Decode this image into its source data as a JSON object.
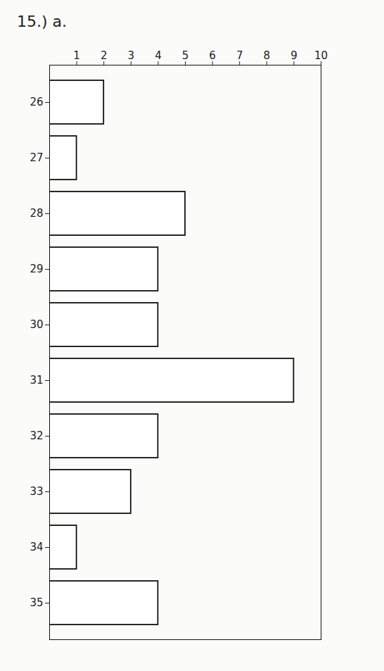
{
  "chart_data": {
    "type": "bar",
    "title": "15.) a.",
    "orientation": "horizontal",
    "categories": [
      "26",
      "27",
      "28",
      "29",
      "30",
      "31",
      "32",
      "33",
      "34",
      "35"
    ],
    "values": [
      2,
      1,
      5,
      4,
      4,
      9,
      4,
      3,
      1,
      4
    ],
    "color": "#ffffff",
    "xlim": [
      0,
      10
    ],
    "xticks": [
      1,
      2,
      3,
      4,
      5,
      6,
      7,
      8,
      9,
      10
    ],
    "grid": false
  }
}
